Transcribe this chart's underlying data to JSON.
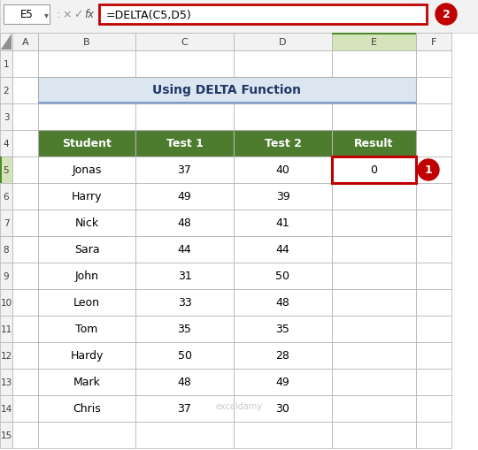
{
  "title": "Using DELTA Function",
  "formula_bar_text": "=DELTA(C5,D5)",
  "cell_ref": "E5",
  "header_bg": "#4e7c2f",
  "header_text_color": "#ffffff",
  "title_text_color": "#1f3864",
  "title_bg": "#dce6f1",
  "col_headers": [
    "Student",
    "Test 1",
    "Test 2",
    "Result"
  ],
  "rows": [
    [
      "Jonas",
      "37",
      "40",
      "0"
    ],
    [
      "Harry",
      "49",
      "39",
      ""
    ],
    [
      "Nick",
      "48",
      "41",
      ""
    ],
    [
      "Sara",
      "44",
      "44",
      ""
    ],
    [
      "John",
      "31",
      "50",
      ""
    ],
    [
      "Leon",
      "33",
      "48",
      ""
    ],
    [
      "Tom",
      "35",
      "35",
      ""
    ],
    [
      "Hardy",
      "50",
      "28",
      ""
    ],
    [
      "Mark",
      "48",
      "49",
      ""
    ],
    [
      "Chris",
      "37",
      "30",
      ""
    ]
  ],
  "excel_col_headers": [
    "A",
    "B",
    "C",
    "D",
    "E",
    "F"
  ],
  "excel_row_headers": [
    "1",
    "2",
    "3",
    "4",
    "5",
    "6",
    "7",
    "8",
    "9",
    "10",
    "11",
    "12",
    "13",
    "14",
    "15"
  ],
  "excel_header_bg": "#f2f2f2",
  "excel_header_selected_bg": "#d6e4bc",
  "excel_col_selected_bg": "#4a8a2a",
  "grid_color": "#b0b0b0",
  "result_cell_border_color": "#c00000",
  "badge_red": "#c00000",
  "formula_bar_border": "#c00000",
  "bg_color": "#ffffff",
  "toolbar_bg": "#f2f2f2",
  "toolbar_border": "#c8c8c8"
}
